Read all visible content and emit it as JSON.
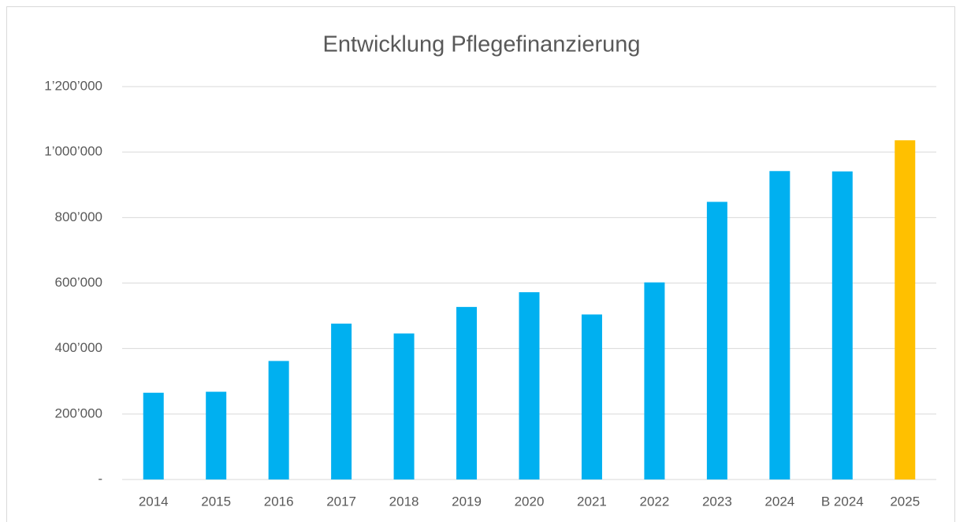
{
  "chart_data": {
    "type": "bar",
    "title": "Entwicklung Pflegefinanzierung",
    "categories": [
      "2014",
      "2015",
      "2016",
      "2017",
      "2018",
      "2019",
      "2020",
      "2021",
      "2022",
      "2023",
      "2024",
      "B 2024",
      "2025"
    ],
    "values": [
      265000,
      268000,
      362000,
      476000,
      446000,
      527000,
      572000,
      504000,
      602000,
      848000,
      942000,
      941000,
      1036000
    ],
    "colors": [
      "#00b0f0",
      "#00b0f0",
      "#00b0f0",
      "#00b0f0",
      "#00b0f0",
      "#00b0f0",
      "#00b0f0",
      "#00b0f0",
      "#00b0f0",
      "#00b0f0",
      "#00b0f0",
      "#00b0f0",
      "#ffc000"
    ],
    "ylim": [
      0,
      1200000
    ],
    "yticks": [
      {
        "value": 0,
        "label": "-"
      },
      {
        "value": 200000,
        "label": "200’000"
      },
      {
        "value": 400000,
        "label": "400’000"
      },
      {
        "value": 600000,
        "label": "600’000"
      },
      {
        "value": 800000,
        "label": "800’000"
      },
      {
        "value": 1000000,
        "label": "1’000’000"
      },
      {
        "value": 1200000,
        "label": "1’200’000"
      }
    ],
    "grid": true
  }
}
